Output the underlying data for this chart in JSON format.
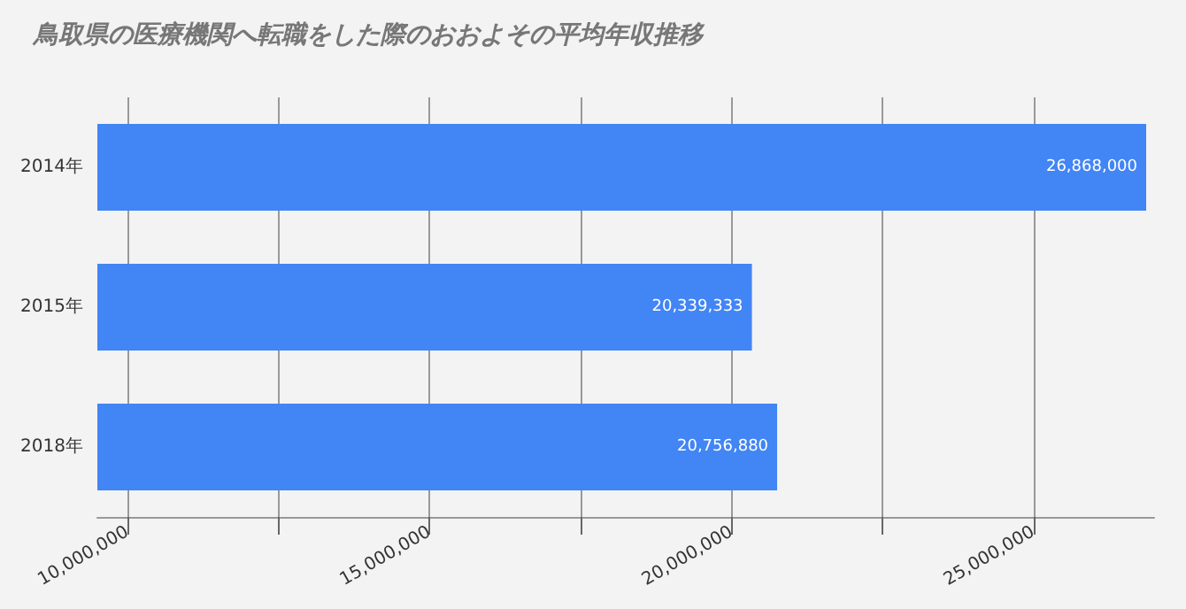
{
  "chart_data": {
    "type": "bar",
    "orientation": "horizontal",
    "title": "鳥取県の医療機関へ転職をした際のおおよその平均年収推移",
    "categories": [
      "2014年",
      "2015年",
      "2018年"
    ],
    "values": [
      26868000,
      20339333,
      20756880
    ],
    "color": "#4285f4",
    "xlim": [
      9500000,
      27000000
    ],
    "xticks": [
      {
        "value": 10000000,
        "label": "10,000,000"
      },
      {
        "value": 12500000,
        "label": null
      },
      {
        "value": 15000000,
        "label": "15,000,000"
      },
      {
        "value": 17500000,
        "label": null
      },
      {
        "value": 20000000,
        "label": "20,000,000"
      },
      {
        "value": 22500000,
        "label": null
      },
      {
        "value": 25000000,
        "label": "25,000,000"
      }
    ],
    "value_labels": [
      "26,868,000",
      "20,339,333",
      "20,756,880"
    ],
    "grid": "x"
  }
}
